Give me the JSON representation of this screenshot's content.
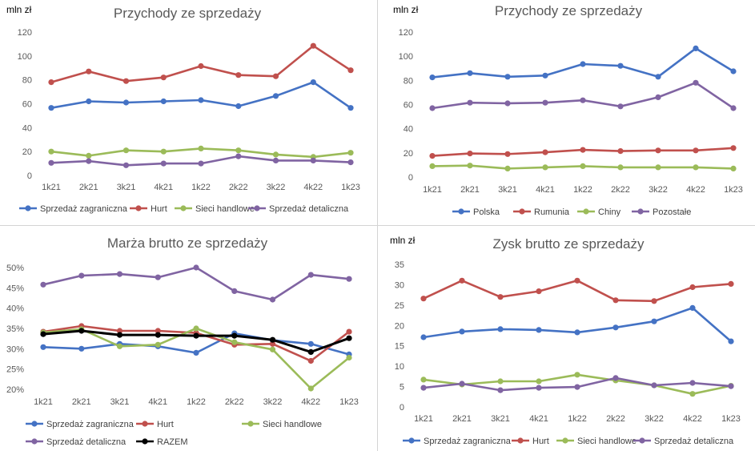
{
  "chart_data": [
    {
      "type": "line",
      "title": "Przychody ze sprzedaży",
      "unit_label": "mln zł",
      "categories": [
        "1k21",
        "2k21",
        "3k21",
        "4k21",
        "1k22",
        "2k22",
        "3k22",
        "4k22",
        "1k23"
      ],
      "ylim": [
        0,
        120
      ],
      "yticks": [
        0,
        20,
        40,
        60,
        80,
        100,
        120
      ],
      "ytick_labels": [
        "0",
        "20",
        "40",
        "60",
        "80",
        "100",
        "120"
      ],
      "grid": false,
      "legend_position": "bottom",
      "series": [
        {
          "name": "Sprzedaż zagraniczna",
          "color": "#4472c4",
          "values": [
            56.5,
            62,
            61,
            62,
            63,
            58,
            66.5,
            78,
            56.5
          ]
        },
        {
          "name": "Hurt",
          "color": "#c0504d",
          "values": [
            78,
            87,
            79,
            82,
            91.5,
            84,
            83,
            108.5,
            88
          ]
        },
        {
          "name": "Sieci handlowe",
          "color": "#9bbb59",
          "values": [
            20,
            16.5,
            21,
            20,
            22.5,
            21,
            17.5,
            15.5,
            19
          ]
        },
        {
          "name": "Sprzedaż detaliczna",
          "color": "#8064a2",
          "values": [
            10.5,
            12,
            8.5,
            10,
            10,
            16,
            12.5,
            12.5,
            11
          ]
        }
      ]
    },
    {
      "type": "line",
      "title": "Przychody ze sprzedaży",
      "unit_label": "mln zł",
      "categories": [
        "1k21",
        "2k21",
        "3k21",
        "4k21",
        "1k22",
        "2k22",
        "3k22",
        "4k22",
        "1k23"
      ],
      "ylim": [
        0,
        120
      ],
      "yticks": [
        0,
        20,
        40,
        60,
        80,
        100,
        120
      ],
      "ytick_labels": [
        "0",
        "20",
        "40",
        "60",
        "80",
        "100",
        "120"
      ],
      "grid": false,
      "legend_position": "bottom",
      "series": [
        {
          "name": "Polska",
          "color": "#4472c4",
          "values": [
            82.5,
            86,
            83,
            84,
            93.5,
            92,
            83,
            106.5,
            87.5
          ]
        },
        {
          "name": "Rumunia",
          "color": "#c0504d",
          "values": [
            17.5,
            19.5,
            19,
            20.5,
            22.5,
            21.5,
            22,
            22,
            24
          ]
        },
        {
          "name": "Chiny",
          "color": "#9bbb59",
          "values": [
            9,
            9.5,
            7,
            8,
            9,
            8,
            8,
            8,
            7
          ]
        },
        {
          "name": "Pozostałe",
          "color": "#8064a2",
          "values": [
            57,
            61.5,
            61,
            61.5,
            63.5,
            58.5,
            66,
            78,
            57
          ]
        }
      ]
    },
    {
      "type": "line",
      "title": "Marża brutto ze sprzedaży",
      "unit_label": "",
      "categories": [
        "1k21",
        "2k21",
        "3k21",
        "4k21",
        "1k22",
        "2k22",
        "3k22",
        "4k22",
        "1k23"
      ],
      "ylim": [
        20,
        50
      ],
      "yticks": [
        20,
        25,
        30,
        35,
        40,
        45,
        50
      ],
      "ytick_labels": [
        "20%",
        "25%",
        "30%",
        "35%",
        "40%",
        "45%",
        "50%"
      ],
      "grid": false,
      "legend_position": "bottom",
      "series": [
        {
          "name": "Sprzedaż zagraniczna",
          "color": "#4472c4",
          "values": [
            30.4,
            30,
            31.2,
            30.6,
            29,
            33.8,
            32.1,
            31.2,
            28.6
          ]
        },
        {
          "name": "Hurt",
          "color": "#c0504d",
          "values": [
            34.2,
            35.6,
            34.4,
            34.4,
            33.9,
            31,
            31.2,
            27,
            34.2
          ]
        },
        {
          "name": "Sieci handlowe",
          "color": "#9bbb59",
          "values": [
            34,
            34.8,
            30.6,
            31,
            35,
            31.6,
            29.8,
            20.2,
            27.8
          ]
        },
        {
          "name": "Sprzedaż detaliczna",
          "color": "#8064a2",
          "values": [
            45.8,
            48,
            48.4,
            47.6,
            50,
            44.2,
            42.1,
            48.2,
            47.2
          ]
        },
        {
          "name": "RAZEM",
          "color": "#000000",
          "values": [
            33.6,
            34.4,
            33.4,
            33.4,
            33.2,
            33.2,
            32.2,
            29.2,
            32.6
          ]
        }
      ]
    },
    {
      "type": "line",
      "title": "Zysk brutto ze sprzedaży",
      "unit_label": "mln zł",
      "categories": [
        "1k21",
        "2k21",
        "3k21",
        "4k21",
        "1k22",
        "2k22",
        "3k22",
        "4k22",
        "1k23"
      ],
      "ylim": [
        0,
        35
      ],
      "yticks": [
        0,
        5,
        10,
        15,
        20,
        25,
        30,
        35
      ],
      "ytick_labels": [
        "0",
        "5",
        "10",
        "15",
        "20",
        "25",
        "30",
        "35"
      ],
      "grid": false,
      "legend_position": "bottom",
      "series": [
        {
          "name": "Sprzedaż zagraniczna",
          "color": "#4472c4",
          "values": [
            17.1,
            18.5,
            19.1,
            18.9,
            18.3,
            19.5,
            21,
            24.3,
            16.1
          ]
        },
        {
          "name": "Hurt",
          "color": "#c0504d",
          "values": [
            26.6,
            31,
            27,
            28.4,
            31,
            26.2,
            26,
            29.4,
            30.2
          ]
        },
        {
          "name": "Sieci handlowe",
          "color": "#9bbb59",
          "values": [
            6.7,
            5.5,
            6.3,
            6.3,
            7.9,
            6.5,
            5.3,
            3.2,
            5.2
          ]
        },
        {
          "name": "Sprzedaż detaliczna",
          "color": "#8064a2",
          "values": [
            4.7,
            5.7,
            4.1,
            4.7,
            4.9,
            7.1,
            5.3,
            5.9,
            5.1
          ]
        }
      ]
    }
  ]
}
